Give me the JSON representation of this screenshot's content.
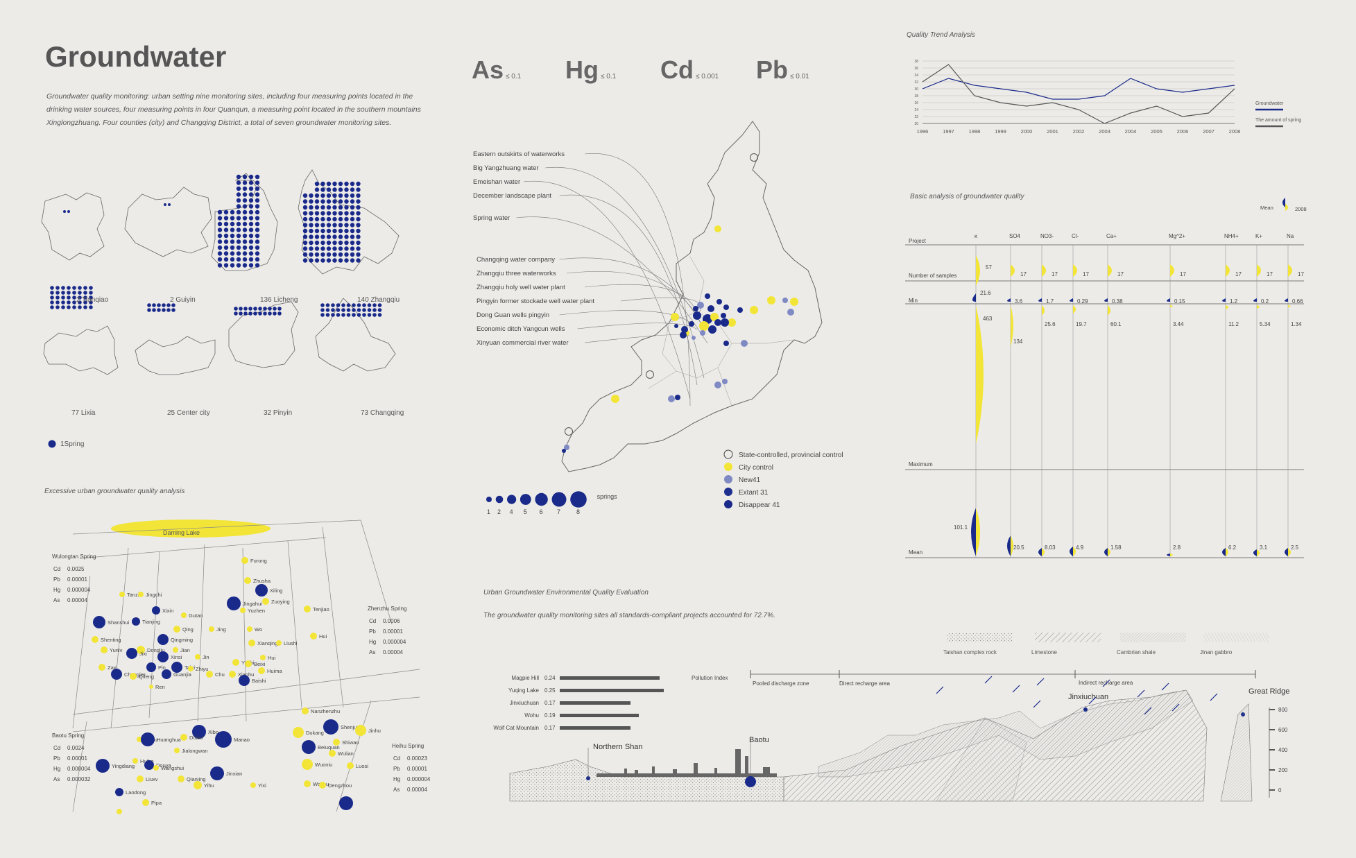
{
  "header": {
    "title": "Groundwater",
    "intro": "Groundwater quality monitoring: urban setting nine monitoring sites, including four measuring points located in the drinking water sources, four measuring points in four Quanqun, a measuring point located in the southern mountains Xinglongzhuang. Four counties (city) and Changqing District, a total of seven groundwater monitoring sites."
  },
  "metals": [
    {
      "symbol": "As",
      "limit": "≤ 0.1"
    },
    {
      "symbol": "Hg",
      "limit": "≤ 0.1"
    },
    {
      "symbol": "Cd",
      "limit": "≤ 0.001"
    },
    {
      "symbol": "Pb",
      "limit": "≤ 0.01"
    }
  ],
  "districts": [
    {
      "count": "2",
      "name": "Tianqiao"
    },
    {
      "count": "2",
      "name": "Guiyin"
    },
    {
      "count": "136",
      "name": "Licheng"
    },
    {
      "count": "140",
      "name": "Zhangqiu"
    },
    {
      "count": "77",
      "name": "Lixia"
    },
    {
      "count": "25",
      "name": "Center city"
    },
    {
      "count": "32",
      "name": "Pinyin"
    },
    {
      "count": "73",
      "name": "Changqing"
    }
  ],
  "spring_key": "1Spring",
  "map_sources": [
    "Eastern outskirts of waterworks",
    "Big Yangzhuang water",
    "Emeishan water",
    "December landscape plant",
    "Spring water",
    "Changqing water company",
    "Zhangqiu three waterworks",
    "Zhangqiu holy well water plant",
    "Pingyin former stockade well water plant",
    "Dong Guan wells pingyin",
    "Economic ditch Yangcun wells",
    "Xinyuan commercial river water"
  ],
  "map_legend": [
    {
      "label": "State-controlled, provincial control",
      "color": "none"
    },
    {
      "label": "City control",
      "color": "#f2e537"
    },
    {
      "label": "New41",
      "color": "#7f8ac4"
    },
    {
      "label": "Extant 31",
      "color": "#1f2f8f"
    },
    {
      "label": "Disappear 41",
      "color": "#1a2a8a"
    }
  ],
  "springs_scale": {
    "values": [
      "1",
      "2",
      "4",
      "5",
      "6",
      "7",
      "8"
    ],
    "label": "springs"
  },
  "colors": {
    "yellow": "#f2e537",
    "navy": "#1a2a8a",
    "lightblue": "#7f8ac4",
    "background": "#ecebe8"
  },
  "trend": {
    "title": "Quality Trend Analysis",
    "legend": [
      "Groundwater",
      "The amount of spring"
    ]
  },
  "chart_data": [
    {
      "type": "line",
      "title": "Quality Trend Analysis",
      "x": [
        "1996",
        "1997",
        "1998",
        "1999",
        "2000",
        "2001",
        "2002",
        "2003",
        "2004",
        "2005",
        "2006",
        "2007",
        "2008"
      ],
      "yticks": [
        "20",
        "22",
        "24",
        "26",
        "28",
        "30",
        "32",
        "34",
        "36",
        "38"
      ],
      "ylim": [
        20,
        38
      ],
      "series": [
        {
          "name": "Groundwater",
          "values": [
            30,
            33,
            31,
            30,
            29,
            27,
            27,
            28,
            33,
            30,
            29,
            30,
            31
          ]
        },
        {
          "name": "The amount of spring",
          "values": [
            32,
            37,
            28,
            26,
            25,
            26,
            24,
            20,
            23,
            25,
            22,
            23,
            30
          ]
        }
      ]
    },
    {
      "type": "table",
      "title": "Basic analysis of groundwater quality",
      "columns": [
        "κ",
        "SO4",
        "NO3-",
        "Cl-",
        "Ca+",
        "Mg^2+",
        "NH4+",
        "K+",
        "Na"
      ],
      "rows": [
        {
          "name": "Number of samples",
          "values": [
            "57",
            "17",
            "17",
            "17",
            "17",
            "17",
            "17",
            "17",
            "17"
          ]
        },
        {
          "name": "Min",
          "values": [
            "21.6",
            "3.6",
            "1.7",
            "0.29",
            "0.38",
            "0.15",
            "1.2",
            "0.2",
            "0.66"
          ]
        },
        {
          "name": "Maximum",
          "values": [
            "463",
            "134",
            "25.6",
            "19.7",
            "60.1",
            "3.44",
            "11.2",
            "5.34",
            "1.34"
          ]
        },
        {
          "name": "Mean",
          "values": [
            "101.1",
            "20.5",
            "8.03",
            "4.9",
            "1.58",
            "2.8",
            "6.2",
            "3.1",
            "2.5"
          ]
        }
      ],
      "legend": {
        "label": "Mean",
        "year": "2008"
      }
    },
    {
      "type": "bar",
      "title": "Pollution Index",
      "categories": [
        "Magpie Hill",
        "Yuqing Lake",
        "Jinxiuchuan",
        "Wohu",
        "Wolf Cat Mountain"
      ],
      "values": [
        0.24,
        0.25,
        0.17,
        0.19,
        0.17
      ]
    }
  ],
  "trend_table": {
    "title": "Basic analysis of groundwater quality",
    "mean_label": "Mean",
    "year": "2008",
    "row_labels": [
      "Project",
      "Number of samples",
      "Min",
      "Maximum",
      "Mean"
    ]
  },
  "excessive": {
    "title": "Excessive urban groundwater quality analysis",
    "lake": "Daming Lake",
    "wulongtan": {
      "name": "Wulongtan Spring",
      "rows": [
        [
          "Cd",
          "0.0025"
        ],
        [
          "Pb",
          "0.00001"
        ],
        [
          "Hg",
          "0.000004"
        ],
        [
          "As",
          "0.00004"
        ]
      ]
    },
    "zhenzhu": {
      "name": "Zhenzhu Spring",
      "rows": [
        [
          "Cd",
          "0.0006"
        ],
        [
          "Pb",
          "0.00001"
        ],
        [
          "Hg",
          "0.000004"
        ],
        [
          "As",
          "0.00004"
        ]
      ]
    },
    "baotu": {
      "name": "Baotu Spring",
      "rows": [
        [
          "Cd",
          "0.0024"
        ],
        [
          "Pb",
          "0.00001"
        ],
        [
          "Hg",
          "0.000004"
        ],
        [
          "As",
          "0.000032"
        ]
      ]
    },
    "heihu": {
      "name": "Heihu Spring",
      "rows": [
        [
          "Cd",
          "0.00023"
        ],
        [
          "Pb",
          "0.00001"
        ],
        [
          "Hg",
          "0.000004"
        ],
        [
          "As",
          "0.00004"
        ]
      ]
    },
    "springs": [
      "Furong",
      "Zhusha",
      "Xiling",
      "Zuoying",
      "Tenjiao",
      "Tanzi",
      "Jingchi",
      "Xixin",
      "Gutan",
      "Jingahui",
      "Yuzhen",
      "Shanshui",
      "Tianjing",
      "Qing",
      "Jing",
      "Wo",
      "Shenting",
      "Qingming",
      "Xianqing",
      "Liushi",
      "Hui",
      "Yunlv",
      "Dongliu",
      "Jian",
      "Jixi",
      "Xinsi",
      "Jin",
      "Hui",
      "Yuchi",
      "Beixi",
      "Zaxi",
      "Pin",
      "Taiyi",
      "Guanjia",
      "Zhiyu",
      "Huima",
      "Chongjer",
      "Qifeng",
      "Xianhu",
      "Chu",
      "Ren",
      "Baishi",
      "Nanzhenzhu",
      "Shenju",
      "Jinhu",
      "Xibo",
      "Dukang",
      "Yinhu",
      "Huanghua",
      "Duibo",
      "Manao",
      "Shiwan",
      "Beiuquan",
      "Jialongwan",
      "Huibo",
      "Douya",
      "Wulian",
      "Wuoniu",
      "Luosi",
      "Yingdiang",
      "Wangshui",
      "Jinxian",
      "Liuxv",
      "Qianjing",
      "Yihu",
      "Yixi",
      "Woyou",
      "Dengzhou",
      "Laodong",
      "Pipa"
    ]
  },
  "evaluation": {
    "title": "Urban Groundwater Environmental Quality Evaluation",
    "text": "The groundwater quality monitoring sites all standards-compliant projects accounted for 72.7%.",
    "strata": [
      "Taishan complex rock",
      "Limestone",
      "Cambrian shale",
      "Jinan gabbro"
    ],
    "pollution_index": "Pollution Index",
    "zones": [
      "Pooled discharge zone",
      "Direct recharge area",
      "Indirect recharge area"
    ],
    "places": [
      "Northern Shan",
      "Baotu",
      "Jinxiuchuan",
      "Great Ridge"
    ],
    "elev_ticks": [
      "800",
      "600",
      "400",
      "200",
      "0"
    ]
  }
}
